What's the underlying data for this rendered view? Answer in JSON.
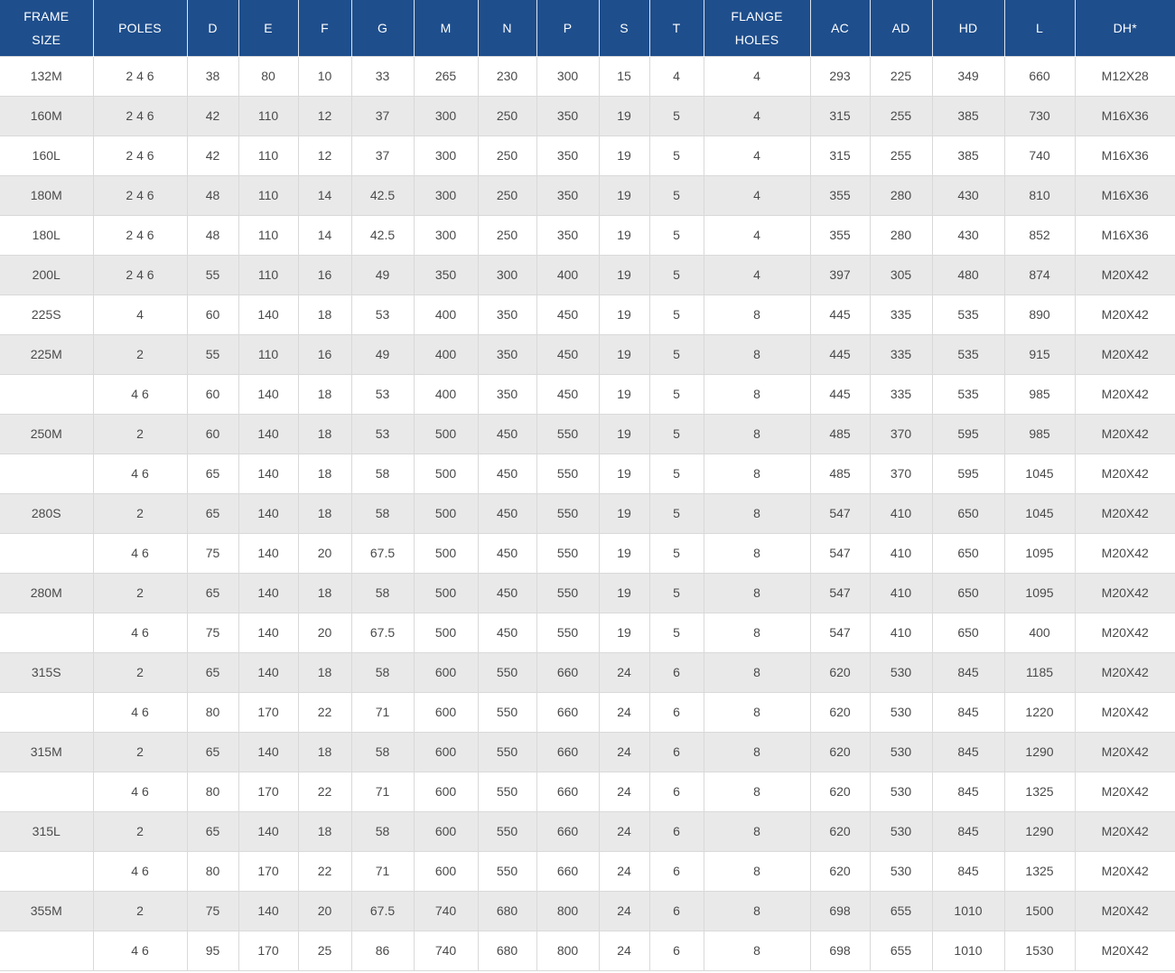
{
  "colors": {
    "header_bg": "#1e4e8c",
    "header_text": "#ffffff",
    "row_bg": "#ffffff",
    "row_alt_bg": "#e9e9e9",
    "cell_border": "#d9d9d9",
    "cell_text": "#4a4a4a"
  },
  "table": {
    "columns": [
      "FRAME SIZE",
      "POLES",
      "D",
      "E",
      "F",
      "G",
      "M",
      "N",
      "P",
      "S",
      "T",
      "FLANGE HOLES",
      "AC",
      "AD",
      "HD",
      "L",
      "DH*"
    ],
    "rows": [
      [
        "132M",
        "2 4 6",
        "38",
        "80",
        "10",
        "33",
        "265",
        "230",
        "300",
        "15",
        "4",
        "4",
        "293",
        "225",
        "349",
        "660",
        "M12X28"
      ],
      [
        "160M",
        "2 4 6",
        "42",
        "110",
        "12",
        "37",
        "300",
        "250",
        "350",
        "19",
        "5",
        "4",
        "315",
        "255",
        "385",
        "730",
        "M16X36"
      ],
      [
        "160L",
        "2 4 6",
        "42",
        "110",
        "12",
        "37",
        "300",
        "250",
        "350",
        "19",
        "5",
        "4",
        "315",
        "255",
        "385",
        "740",
        "M16X36"
      ],
      [
        "180M",
        "2 4 6",
        "48",
        "110",
        "14",
        "42.5",
        "300",
        "250",
        "350",
        "19",
        "5",
        "4",
        "355",
        "280",
        "430",
        "810",
        "M16X36"
      ],
      [
        "180L",
        "2 4 6",
        "48",
        "110",
        "14",
        "42.5",
        "300",
        "250",
        "350",
        "19",
        "5",
        "4",
        "355",
        "280",
        "430",
        "852",
        "M16X36"
      ],
      [
        "200L",
        "2 4 6",
        "55",
        "110",
        "16",
        "49",
        "350",
        "300",
        "400",
        "19",
        "5",
        "4",
        "397",
        "305",
        "480",
        "874",
        "M20X42"
      ],
      [
        "225S",
        "4",
        "60",
        "140",
        "18",
        "53",
        "400",
        "350",
        "450",
        "19",
        "5",
        "8",
        "445",
        "335",
        "535",
        "890",
        "M20X42"
      ],
      [
        "225M",
        "2",
        "55",
        "110",
        "16",
        "49",
        "400",
        "350",
        "450",
        "19",
        "5",
        "8",
        "445",
        "335",
        "535",
        "915",
        "M20X42"
      ],
      [
        "",
        "4 6",
        "60",
        "140",
        "18",
        "53",
        "400",
        "350",
        "450",
        "19",
        "5",
        "8",
        "445",
        "335",
        "535",
        "985",
        "M20X42"
      ],
      [
        "250M",
        "2",
        "60",
        "140",
        "18",
        "53",
        "500",
        "450",
        "550",
        "19",
        "5",
        "8",
        "485",
        "370",
        "595",
        "985",
        "M20X42"
      ],
      [
        "",
        "4 6",
        "65",
        "140",
        "18",
        "58",
        "500",
        "450",
        "550",
        "19",
        "5",
        "8",
        "485",
        "370",
        "595",
        "1045",
        "M20X42"
      ],
      [
        "280S",
        "2",
        "65",
        "140",
        "18",
        "58",
        "500",
        "450",
        "550",
        "19",
        "5",
        "8",
        "547",
        "410",
        "650",
        "1045",
        "M20X42"
      ],
      [
        "",
        "4 6",
        "75",
        "140",
        "20",
        "67.5",
        "500",
        "450",
        "550",
        "19",
        "5",
        "8",
        "547",
        "410",
        "650",
        "1095",
        "M20X42"
      ],
      [
        "280M",
        "2",
        "65",
        "140",
        "18",
        "58",
        "500",
        "450",
        "550",
        "19",
        "5",
        "8",
        "547",
        "410",
        "650",
        "1095",
        "M20X42"
      ],
      [
        "",
        "4 6",
        "75",
        "140",
        "20",
        "67.5",
        "500",
        "450",
        "550",
        "19",
        "5",
        "8",
        "547",
        "410",
        "650",
        "400",
        "M20X42"
      ],
      [
        "315S",
        "2",
        "65",
        "140",
        "18",
        "58",
        "600",
        "550",
        "660",
        "24",
        "6",
        "8",
        "620",
        "530",
        "845",
        "1185",
        "M20X42"
      ],
      [
        "",
        "4 6",
        "80",
        "170",
        "22",
        "71",
        "600",
        "550",
        "660",
        "24",
        "6",
        "8",
        "620",
        "530",
        "845",
        "1220",
        "M20X42"
      ],
      [
        "315M",
        "2",
        "65",
        "140",
        "18",
        "58",
        "600",
        "550",
        "660",
        "24",
        "6",
        "8",
        "620",
        "530",
        "845",
        "1290",
        "M20X42"
      ],
      [
        "",
        "4 6",
        "80",
        "170",
        "22",
        "71",
        "600",
        "550",
        "660",
        "24",
        "6",
        "8",
        "620",
        "530",
        "845",
        "1325",
        "M20X42"
      ],
      [
        "315L",
        "2",
        "65",
        "140",
        "18",
        "58",
        "600",
        "550",
        "660",
        "24",
        "6",
        "8",
        "620",
        "530",
        "845",
        "1290",
        "M20X42"
      ],
      [
        "",
        "4 6",
        "80",
        "170",
        "22",
        "71",
        "600",
        "550",
        "660",
        "24",
        "6",
        "8",
        "620",
        "530",
        "845",
        "1325",
        "M20X42"
      ],
      [
        "355M",
        "2",
        "75",
        "140",
        "20",
        "67.5",
        "740",
        "680",
        "800",
        "24",
        "6",
        "8",
        "698",
        "655",
        "1010",
        "1500",
        "M20X42"
      ],
      [
        "",
        "4 6",
        "95",
        "170",
        "25",
        "86",
        "740",
        "680",
        "800",
        "24",
        "6",
        "8",
        "698",
        "655",
        "1010",
        "1530",
        "M20X42"
      ]
    ]
  }
}
